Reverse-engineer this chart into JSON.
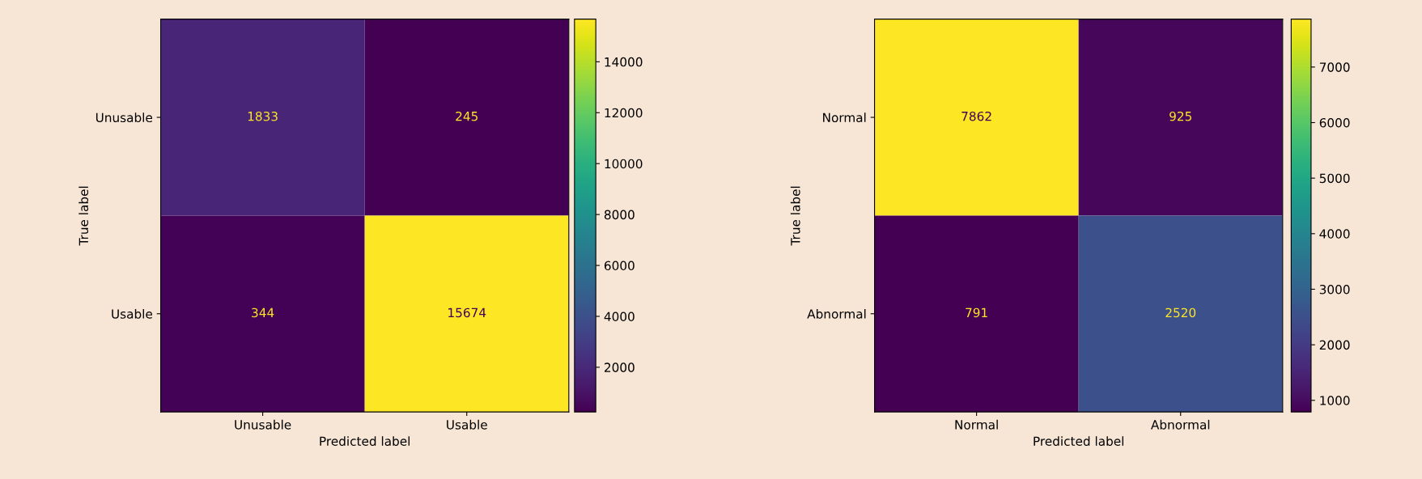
{
  "chart_data": [
    {
      "type": "heatmap",
      "xlabel": "Predicted label",
      "ylabel": "True label",
      "categories": [
        "Unusable",
        "Usable"
      ],
      "y_categories": [
        "Unusable",
        "Usable"
      ],
      "cells": [
        [
          1833,
          245
        ],
        [
          344,
          15674
        ]
      ],
      "clim": [
        245,
        15674
      ],
      "cticks": [
        2000,
        4000,
        6000,
        8000,
        10000,
        12000,
        14000
      ],
      "data_labels": true
    },
    {
      "type": "heatmap",
      "xlabel": "Predicted label",
      "ylabel": "True label",
      "categories": [
        "Normal",
        "Abnormal"
      ],
      "y_categories": [
        "Normal",
        "Abnormal"
      ],
      "cells": [
        [
          7862,
          925
        ],
        [
          791,
          2520
        ]
      ],
      "clim": [
        791,
        7862
      ],
      "cticks": [
        1000,
        2000,
        3000,
        4000,
        5000,
        6000,
        7000
      ],
      "data_labels": true
    }
  ]
}
